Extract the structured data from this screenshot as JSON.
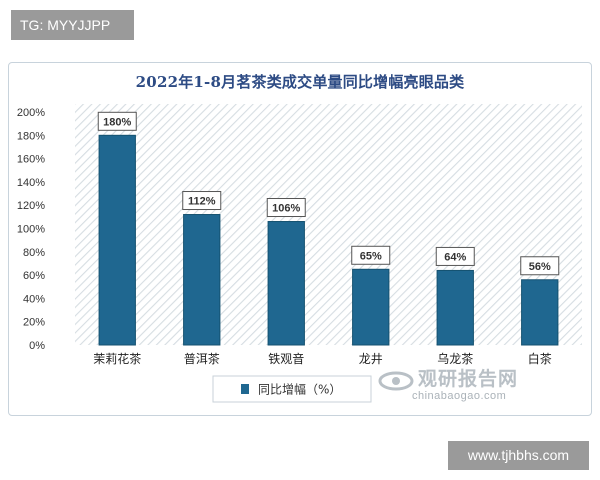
{
  "top_tag": "TG: MYYJJPP",
  "bottom_tag": "www.tjhbhs.com",
  "watermark": {
    "name": "观研报告网",
    "url": "chinabaogao.com"
  },
  "colors": {
    "bar": "#1f6790",
    "bar_edge": "#155270",
    "title": "#2d4b84",
    "hatch": "#d6dde2"
  },
  "chart_data": {
    "type": "bar",
    "title": "2022年1-8月茗茶类成交单量同比增幅亮眼品类",
    "categories": [
      "茉莉花茶",
      "普洱茶",
      "铁观音",
      "龙井",
      "乌龙茶",
      "白茶"
    ],
    "values": [
      180,
      112,
      106,
      65,
      64,
      56
    ],
    "data_labels": [
      "180%",
      "112%",
      "106%",
      "65%",
      "64%",
      "56%"
    ],
    "yticks": [
      "0%",
      "20%",
      "40%",
      "60%",
      "80%",
      "100%",
      "120%",
      "140%",
      "160%",
      "180%",
      "200%"
    ],
    "ylim": [
      0,
      200
    ],
    "unit": "%",
    "legend": "同比增幅（%）",
    "legend_position": "bottom",
    "background": "hatched",
    "grid": false
  }
}
